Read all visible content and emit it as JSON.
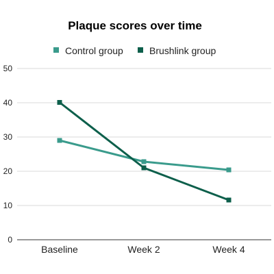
{
  "chart_data": {
    "type": "line",
    "title": "Plaque scores over time",
    "xlabel": "",
    "ylabel": "",
    "categories": [
      "Baseline",
      "Week 2",
      "Week 4"
    ],
    "ylim": [
      0,
      50
    ],
    "yticks": [
      0,
      10,
      20,
      30,
      40,
      50
    ],
    "grid": true,
    "legend_position": "top",
    "series": [
      {
        "name": "Control group",
        "values": [
          29,
          22.8,
          20.4
        ],
        "color": "#3a9b8c"
      },
      {
        "name": "Brushlink group",
        "values": [
          40.1,
          21,
          11.6
        ],
        "color": "#0d5f4b"
      }
    ]
  }
}
